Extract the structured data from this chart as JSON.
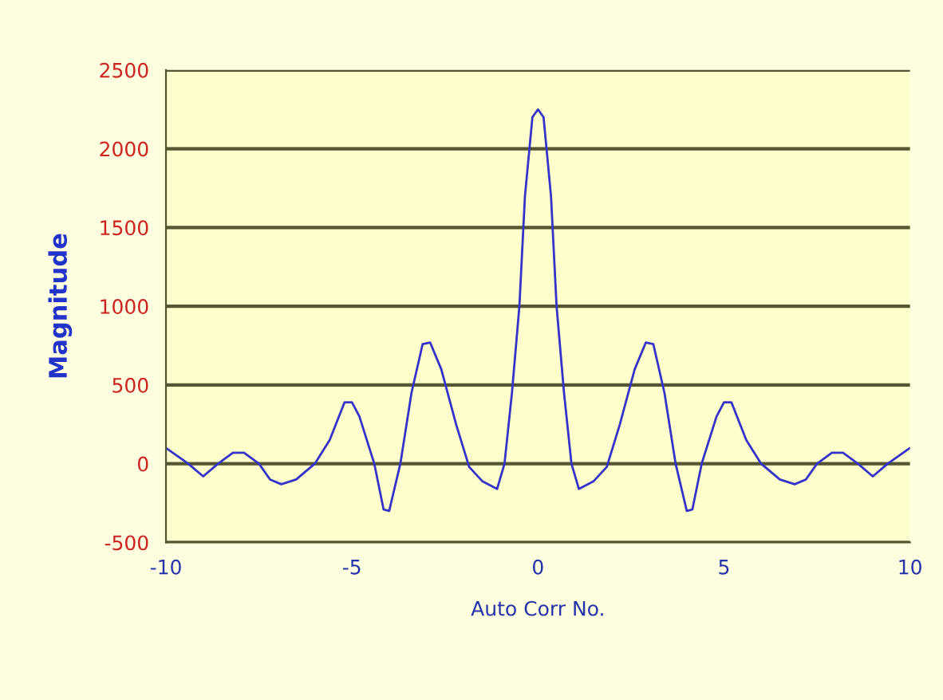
{
  "chart_data": {
    "type": "line",
    "xlabel": "Auto Corr No.",
    "ylabel": "Magnitude",
    "x": [
      -10,
      -9.4,
      -9.0,
      -8.6,
      -8.2,
      -7.9,
      -7.5,
      -7.2,
      -6.9,
      -6.5,
      -6.0,
      -5.6,
      -5.2,
      -5.0,
      -4.8,
      -4.4,
      -4.15,
      -4.0,
      -3.7,
      -3.4,
      -3.1,
      -2.9,
      -2.6,
      -2.2,
      -1.85,
      -1.5,
      -1.1,
      -0.9,
      -0.7,
      -0.5,
      -0.35,
      -0.15,
      0,
      0.15,
      0.35,
      0.5,
      0.7,
      0.9,
      1.1,
      1.5,
      1.85,
      2.2,
      2.6,
      2.9,
      3.1,
      3.4,
      3.7,
      4.0,
      4.15,
      4.4,
      4.8,
      5.0,
      5.2,
      5.6,
      6.0,
      6.5,
      6.9,
      7.2,
      7.5,
      7.9,
      8.2,
      8.6,
      9.0,
      9.4,
      10
    ],
    "series": [
      {
        "color": "#3333cc",
        "values": [
          100,
          0,
          -80,
          0,
          70,
          70,
          0,
          -100,
          -130,
          -100,
          0,
          150,
          390,
          390,
          300,
          0,
          -290,
          -300,
          0,
          450,
          760,
          770,
          600,
          250,
          -20,
          -110,
          -160,
          0,
          450,
          1000,
          1700,
          2200,
          2250,
          2200,
          1700,
          1000,
          450,
          0,
          -160,
          -110,
          -20,
          250,
          600,
          770,
          760,
          450,
          0,
          -300,
          -290,
          0,
          300,
          390,
          390,
          150,
          0,
          -100,
          -130,
          -100,
          0,
          70,
          70,
          0,
          -80,
          0,
          100
        ]
      }
    ],
    "xlim": [
      -10,
      10
    ],
    "xticks": [
      -10,
      -5,
      0,
      5,
      10
    ],
    "ylim": [
      -500,
      2500
    ],
    "yticks": [
      -500,
      0,
      500,
      1000,
      1500,
      2000,
      2500
    ],
    "grid": "y",
    "marker": "none",
    "line_style": "solid"
  }
}
